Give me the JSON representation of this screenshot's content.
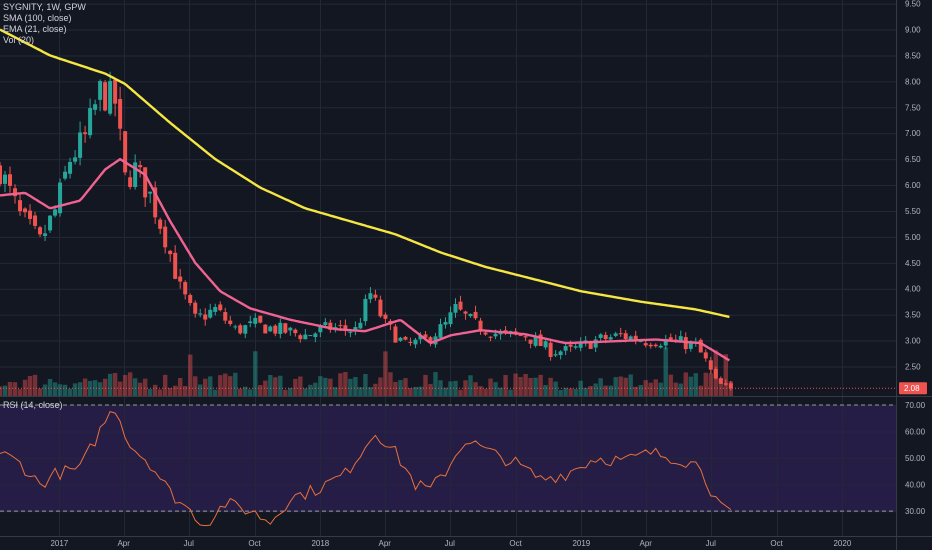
{
  "legend": {
    "title": "SYGNITY, 1W, GPW",
    "sma": "SMA (100, close)",
    "ema": "EMA (21, close)",
    "vol": "Vol (20)"
  },
  "colors": {
    "background": "#131722",
    "up": "#26a69a",
    "down": "#ef5350",
    "sma": "#f5e642",
    "ema": "#f06292",
    "rsi": "#e8703a",
    "rsi_band": "#2a1f4e",
    "price_badge": "#ef5350"
  },
  "rsi_panel": {
    "title": "RSI (14, close)"
  },
  "last_price_label": "2.08",
  "chart_data": [
    {
      "type": "candlestick",
      "title": "SYGNITY, 1W, GPW",
      "xlim": [
        "2016-10-10",
        "2020-03-16"
      ],
      "ylim": [
        2.0,
        9.5
      ],
      "y_ticks": [
        "9.50",
        "9.00",
        "8.50",
        "8.00",
        "7.50",
        "7.00",
        "6.50",
        "6.00",
        "5.50",
        "5.00",
        "4.50",
        "4.00",
        "3.50",
        "3.00",
        "2.50"
      ],
      "x_ticks": [
        {
          "date": "2017-01-01",
          "label": "2017"
        },
        {
          "date": "2017-04-01",
          "label": "Apr"
        },
        {
          "date": "2017-07-01",
          "label": "Jul"
        },
        {
          "date": "2017-10-01",
          "label": "Oct"
        },
        {
          "date": "2018-01-01",
          "label": "2018"
        },
        {
          "date": "2018-04-01",
          "label": "Apr"
        },
        {
          "date": "2018-07-01",
          "label": "Jul"
        },
        {
          "date": "2018-10-01",
          "label": "Oct"
        },
        {
          "date": "2019-01-01",
          "label": "2019"
        },
        {
          "date": "2019-04-01",
          "label": "Apr"
        },
        {
          "date": "2019-07-01",
          "label": "Jul"
        },
        {
          "date": "2019-10-01",
          "label": "Oct"
        },
        {
          "date": "2020-01-01",
          "label": "2020"
        }
      ],
      "price_anchors": [
        [
          "2016-10-10",
          6.3
        ],
        [
          "2016-11-07",
          5.4
        ],
        [
          "2016-12-05",
          4.9
        ],
        [
          "2016-12-26",
          5.5
        ],
        [
          "2017-01-16",
          6.5
        ],
        [
          "2017-02-06",
          6.9
        ],
        [
          "2017-02-27",
          7.8
        ],
        [
          "2017-03-20",
          7.6
        ],
        [
          "2017-04-03",
          6.1
        ],
        [
          "2017-04-17",
          6.3
        ],
        [
          "2017-05-08",
          5.8
        ],
        [
          "2017-05-29",
          5.0
        ],
        [
          "2017-06-19",
          4.0
        ],
        [
          "2017-07-10",
          3.4
        ],
        [
          "2017-08-07",
          3.6
        ],
        [
          "2017-09-04",
          3.2
        ],
        [
          "2017-10-02",
          3.3
        ],
        [
          "2017-11-06",
          3.2
        ],
        [
          "2017-12-11",
          3.1
        ],
        [
          "2018-01-15",
          3.25
        ],
        [
          "2018-02-19",
          3.2
        ],
        [
          "2018-03-12",
          3.9
        ],
        [
          "2018-04-02",
          3.3
        ],
        [
          "2018-04-30",
          2.9
        ],
        [
          "2018-05-28",
          3.0
        ],
        [
          "2018-06-25",
          3.3
        ],
        [
          "2018-07-09",
          3.6
        ],
        [
          "2018-08-06",
          3.3
        ],
        [
          "2018-09-10",
          3.1
        ],
        [
          "2018-10-15",
          3.1
        ],
        [
          "2018-11-19",
          2.8
        ],
        [
          "2018-12-17",
          2.8
        ],
        [
          "2019-01-21",
          3.0
        ],
        [
          "2019-02-25",
          3.1
        ],
        [
          "2019-04-01",
          3.0
        ],
        [
          "2019-05-06",
          3.0
        ],
        [
          "2019-06-10",
          2.9
        ],
        [
          "2019-06-24",
          2.6
        ],
        [
          "2019-07-08",
          2.2
        ],
        [
          "2019-07-22",
          2.08
        ]
      ],
      "sma_100": [
        [
          "2016-10-10",
          9.0
        ],
        [
          "2016-12-19",
          8.5
        ],
        [
          "2017-03-06",
          8.15
        ],
        [
          "2017-04-03",
          7.95
        ],
        [
          "2017-06-05",
          7.2
        ],
        [
          "2017-08-07",
          6.5
        ],
        [
          "2017-10-09",
          5.95
        ],
        [
          "2017-12-11",
          5.55
        ],
        [
          "2018-02-12",
          5.3
        ],
        [
          "2018-04-16",
          5.05
        ],
        [
          "2018-06-18",
          4.7
        ],
        [
          "2018-08-20",
          4.42
        ],
        [
          "2018-10-22",
          4.2
        ],
        [
          "2019-01-01",
          3.95
        ],
        [
          "2019-03-25",
          3.75
        ],
        [
          "2019-06-10",
          3.6
        ],
        [
          "2019-07-29",
          3.45
        ]
      ],
      "ema_21": [
        [
          "2016-10-10",
          5.8
        ],
        [
          "2016-11-14",
          5.85
        ],
        [
          "2016-12-19",
          5.55
        ],
        [
          "2017-01-30",
          5.7
        ],
        [
          "2017-03-06",
          6.3
        ],
        [
          "2017-03-27",
          6.5
        ],
        [
          "2017-05-01",
          6.2
        ],
        [
          "2017-06-05",
          5.3
        ],
        [
          "2017-07-10",
          4.5
        ],
        [
          "2017-08-14",
          3.95
        ],
        [
          "2017-09-25",
          3.62
        ],
        [
          "2017-11-20",
          3.4
        ],
        [
          "2018-01-22",
          3.22
        ],
        [
          "2018-03-05",
          3.18
        ],
        [
          "2018-04-23",
          3.4
        ],
        [
          "2018-06-04",
          2.95
        ],
        [
          "2018-07-02",
          3.1
        ],
        [
          "2018-08-13",
          3.2
        ],
        [
          "2018-10-15",
          3.12
        ],
        [
          "2018-12-10",
          2.95
        ],
        [
          "2019-02-04",
          2.98
        ],
        [
          "2019-04-15",
          3.02
        ],
        [
          "2019-06-17",
          2.95
        ],
        [
          "2019-07-29",
          2.6
        ]
      ],
      "volume_note": "Weekly volume bars, spikes near Jul 2017, Apr 2018 and Apr 2019"
    },
    {
      "type": "line",
      "title": "RSI (14, close)",
      "ylim": [
        22,
        72
      ],
      "y_ticks": [
        "70.00",
        "60.00",
        "50.00",
        "40.00",
        "30.00"
      ],
      "levels": [
        70,
        30
      ],
      "rsi": [
        [
          "2016-10-10",
          52
        ],
        [
          "2016-11-07",
          48
        ],
        [
          "2016-12-05",
          40
        ],
        [
          "2016-12-26",
          44
        ],
        [
          "2017-01-30",
          46
        ],
        [
          "2017-03-06",
          64
        ],
        [
          "2017-03-20",
          69
        ],
        [
          "2017-04-10",
          55
        ],
        [
          "2017-05-08",
          48
        ],
        [
          "2017-06-05",
          37
        ],
        [
          "2017-07-03",
          30
        ],
        [
          "2017-07-24",
          25
        ],
        [
          "2017-08-21",
          33
        ],
        [
          "2017-09-25",
          30
        ],
        [
          "2017-10-23",
          26
        ],
        [
          "2017-11-20",
          35
        ],
        [
          "2017-12-25",
          38
        ],
        [
          "2018-02-05",
          44
        ],
        [
          "2018-03-19",
          60
        ],
        [
          "2018-04-16",
          52
        ],
        [
          "2018-05-14",
          40
        ],
        [
          "2018-06-04",
          38
        ],
        [
          "2018-06-25",
          45
        ],
        [
          "2018-07-23",
          57
        ],
        [
          "2018-08-27",
          52
        ],
        [
          "2018-10-01",
          48
        ],
        [
          "2018-11-05",
          42
        ],
        [
          "2018-12-10",
          44
        ],
        [
          "2019-01-21",
          50
        ],
        [
          "2019-03-04",
          49
        ],
        [
          "2019-04-08",
          52
        ],
        [
          "2019-05-13",
          50
        ],
        [
          "2019-06-17",
          47
        ],
        [
          "2019-07-01",
          38
        ],
        [
          "2019-07-15",
          31
        ],
        [
          "2019-07-29",
          29
        ]
      ]
    }
  ]
}
